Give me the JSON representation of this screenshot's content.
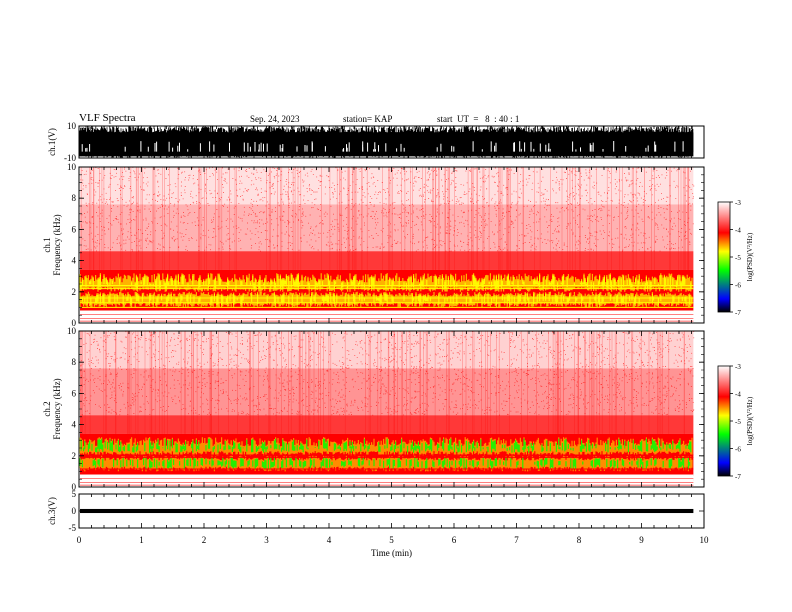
{
  "header": {
    "title": "VLF Spectra",
    "date": "Sep. 24, 2023",
    "station": "station= KAP",
    "start": "start  UT  =   8  : 40 : 1"
  },
  "chart_data": [
    {
      "type": "line",
      "name": "ch1-waveform",
      "ylabel": "ch.1(V)",
      "ylim": [
        -10,
        10
      ],
      "ytick_labels": [
        "10",
        "-10"
      ],
      "xlim": [
        0,
        10
      ]
    },
    {
      "type": "heatmap",
      "name": "ch1-spectrogram",
      "ylabel": "ch.1\nFrequency (kHz)",
      "ylim": [
        0,
        10
      ],
      "yticks": [
        0,
        2,
        4,
        6,
        8,
        10
      ],
      "xlim": [
        0,
        10
      ],
      "colorbar": {
        "label": "log(PSD)(V²/Hz)",
        "range": [
          -7,
          -3
        ],
        "ticks": [
          "-3",
          "-4",
          "-5",
          "-6",
          "-7"
        ]
      }
    },
    {
      "type": "heatmap",
      "name": "ch2-spectrogram",
      "ylabel": "ch.2\nFrequency (kHz)",
      "ylim": [
        0,
        10
      ],
      "yticks": [
        0,
        2,
        4,
        6,
        8,
        10
      ],
      "xlim": [
        0,
        10
      ],
      "colorbar": {
        "label": "log(PSD)(V²/Hz)",
        "range": [
          -7,
          -3
        ],
        "ticks": [
          "-3",
          "-4",
          "-5",
          "-6",
          "-7"
        ]
      }
    },
    {
      "type": "line",
      "name": "ch3-waveform",
      "ylabel": "ch.3(V)",
      "ylim": [
        -5,
        5
      ],
      "ytick_labels": [
        "5",
        "0",
        "-5"
      ],
      "xlim": [
        0,
        10
      ]
    }
  ],
  "xaxis": {
    "label": "Time  (min)",
    "ticks": [
      0,
      1,
      2,
      3,
      4,
      5,
      6,
      7,
      8,
      9,
      10
    ],
    "recording_end_min": 9.83
  },
  "colors": {
    "white": "#ffffff",
    "red": "#ff0000",
    "yellow": "#ffff00",
    "green": "#00ff00",
    "blue": "#0000ff",
    "black": "#000000"
  }
}
